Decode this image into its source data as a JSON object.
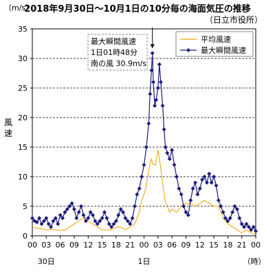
{
  "chart_data": {
    "type": "line",
    "title": "2018年9月30日〜10月1日の10分毎の海面気圧の推移",
    "subtitle": "（日立市役所）",
    "unit_label": "（m/s）",
    "ylabel": "風速",
    "xlabel_unit": "（時）",
    "x_ticks": [
      "00",
      "03",
      "06",
      "09",
      "12",
      "15",
      "18",
      "21",
      "00",
      "03",
      "06",
      "09",
      "12",
      "15",
      "18",
      "21",
      "00"
    ],
    "day_labels": [
      "30日",
      "1日"
    ],
    "ylim": [
      0,
      35
    ],
    "y_ticks": [
      0,
      5,
      10,
      15,
      20,
      25,
      30,
      35
    ],
    "grid": "horizontal dashed",
    "legend_position": "top-right",
    "annotation": {
      "lines": [
        "最大瞬間風速",
        "1日01時48分",
        "南の風 30.9m/s"
      ],
      "arrow_x_hours": 25.8
    },
    "series": [
      {
        "name": "平均風速",
        "color": "#f0a000",
        "marker": "none",
        "points": [
          [
            0,
            1.5
          ],
          [
            1,
            1.3
          ],
          [
            2,
            1.2
          ],
          [
            3,
            1.0
          ],
          [
            4,
            1.1
          ],
          [
            5,
            1.0
          ],
          [
            6,
            0.9
          ],
          [
            7,
            1.0
          ],
          [
            8,
            1.5
          ],
          [
            9,
            2.0
          ],
          [
            10,
            2.5
          ],
          [
            11,
            3.0
          ],
          [
            12,
            2.5
          ],
          [
            13,
            2.0
          ],
          [
            14,
            1.5
          ],
          [
            15,
            1.0
          ],
          [
            16,
            1.0
          ],
          [
            17,
            1.0
          ],
          [
            18,
            1.5
          ],
          [
            19,
            1.5
          ],
          [
            20,
            1.0
          ],
          [
            21,
            1.5
          ],
          [
            22,
            2.0
          ],
          [
            22.5,
            3.0
          ],
          [
            23,
            4.0
          ],
          [
            23.5,
            6.0
          ],
          [
            24,
            7.0
          ],
          [
            24.5,
            8.5
          ],
          [
            25,
            11.0
          ],
          [
            25.5,
            13.0
          ],
          [
            26,
            12.0
          ],
          [
            26.5,
            12.0
          ],
          [
            27,
            14.5
          ],
          [
            27.5,
            12.0
          ],
          [
            28,
            9.0
          ],
          [
            28.5,
            6.0
          ],
          [
            29,
            5.0
          ],
          [
            29.5,
            4.0
          ],
          [
            30,
            4.5
          ],
          [
            31,
            4.0
          ],
          [
            32,
            5.0
          ],
          [
            33,
            5.5
          ],
          [
            34,
            5.5
          ],
          [
            35,
            5.0
          ],
          [
            36,
            5.5
          ],
          [
            37,
            6.0
          ],
          [
            38,
            5.5
          ],
          [
            39,
            5.0
          ],
          [
            40,
            5.0
          ],
          [
            41,
            3.0
          ],
          [
            42,
            2.0
          ],
          [
            43,
            1.5
          ],
          [
            44,
            1.0
          ],
          [
            45,
            0.5
          ],
          [
            46,
            1.0
          ],
          [
            47,
            0.5
          ],
          [
            48,
            0.2
          ]
        ]
      },
      {
        "name": "最大瞬間風速",
        "color": "#1a1a7a",
        "marker": "diamond",
        "points": [
          [
            0,
            3.0
          ],
          [
            0.5,
            2.5
          ],
          [
            1,
            2.3
          ],
          [
            1.5,
            3.0
          ],
          [
            2,
            2.0
          ],
          [
            2.5,
            2.5
          ],
          [
            3,
            3.0
          ],
          [
            3.5,
            2.0
          ],
          [
            4,
            1.5
          ],
          [
            4.5,
            2.5
          ],
          [
            5,
            3.0
          ],
          [
            5.5,
            2.0
          ],
          [
            6,
            3.5
          ],
          [
            6.5,
            3.0
          ],
          [
            7,
            4.0
          ],
          [
            7.5,
            4.5
          ],
          [
            8,
            5.0
          ],
          [
            8.5,
            5.5
          ],
          [
            9,
            4.5
          ],
          [
            9.5,
            3.0
          ],
          [
            10,
            4.0
          ],
          [
            10.5,
            5.0
          ],
          [
            11,
            3.5
          ],
          [
            11.5,
            2.5
          ],
          [
            12,
            3.0
          ],
          [
            12.5,
            4.0
          ],
          [
            13,
            3.5
          ],
          [
            13.5,
            2.5
          ],
          [
            14,
            2.0
          ],
          [
            14.5,
            2.5
          ],
          [
            15,
            3.0
          ],
          [
            15.5,
            4.0
          ],
          [
            16,
            3.0
          ],
          [
            16.5,
            2.0
          ],
          [
            17,
            1.5
          ],
          [
            17.5,
            2.0
          ],
          [
            18,
            2.5
          ],
          [
            18.5,
            3.5
          ],
          [
            19,
            4.5
          ],
          [
            19.5,
            4.0
          ],
          [
            20,
            3.0
          ],
          [
            20.5,
            2.5
          ],
          [
            21,
            2.0
          ],
          [
            21.5,
            3.0
          ],
          [
            22,
            5.0
          ],
          [
            22.5,
            7.0
          ],
          [
            23,
            8.0
          ],
          [
            23.5,
            10.0
          ],
          [
            24,
            12.0
          ],
          [
            24.5,
            15.0
          ],
          [
            25,
            19.0
          ],
          [
            25.3,
            24.0
          ],
          [
            25.6,
            28.0
          ],
          [
            25.8,
            30.9
          ],
          [
            26,
            26.0
          ],
          [
            26.3,
            22.0
          ],
          [
            26.6,
            23.0
          ],
          [
            27,
            25.0
          ],
          [
            27.3,
            29.0
          ],
          [
            27.6,
            26.0
          ],
          [
            28,
            22.0
          ],
          [
            28.3,
            18.0
          ],
          [
            28.6,
            15.0
          ],
          [
            29,
            14.0
          ],
          [
            29.5,
            13.0
          ],
          [
            30,
            14.5
          ],
          [
            30.5,
            12.0
          ],
          [
            31,
            10.0
          ],
          [
            31.5,
            8.0
          ],
          [
            32,
            7.0
          ],
          [
            32.5,
            5.0
          ],
          [
            33,
            4.0
          ],
          [
            33.5,
            3.5
          ],
          [
            34,
            6.0
          ],
          [
            34.5,
            8.0
          ],
          [
            35,
            9.0
          ],
          [
            35.5,
            7.0
          ],
          [
            36,
            8.0
          ],
          [
            36.5,
            9.5
          ],
          [
            37,
            10.0
          ],
          [
            37.5,
            9.0
          ],
          [
            38,
            10.5
          ],
          [
            38.5,
            9.0
          ],
          [
            39,
            10.0
          ],
          [
            39.5,
            8.5
          ],
          [
            40,
            6.0
          ],
          [
            40.5,
            5.0
          ],
          [
            41,
            4.0
          ],
          [
            41.5,
            3.0
          ],
          [
            42,
            2.5
          ],
          [
            42.5,
            3.0
          ],
          [
            43,
            4.0
          ],
          [
            43.5,
            5.0
          ],
          [
            44,
            4.5
          ],
          [
            44.5,
            3.0
          ],
          [
            45,
            2.0
          ],
          [
            45.5,
            1.5
          ],
          [
            46,
            2.0
          ],
          [
            46.5,
            1.5
          ],
          [
            47,
            1.0
          ],
          [
            47.5,
            1.5
          ],
          [
            48,
            0.8
          ]
        ]
      }
    ]
  }
}
